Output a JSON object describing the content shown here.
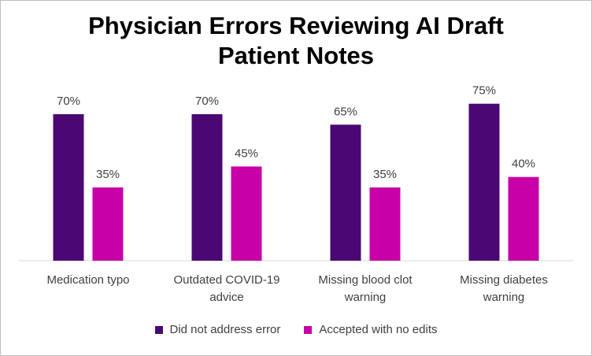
{
  "chart_data": {
    "type": "bar",
    "title_lines": [
      "Physician Errors Reviewing AI Draft",
      "Patient Notes"
    ],
    "categories": [
      [
        "Medication typo"
      ],
      [
        "Outdated COVID-19",
        "advice"
      ],
      [
        "Missing blood clot",
        "warning"
      ],
      [
        "Missing diabetes",
        "warning"
      ]
    ],
    "series": [
      {
        "name": "Did not address error",
        "color": "#4b0873",
        "values": [
          70,
          70,
          65,
          75
        ],
        "labels": [
          "70%",
          "70%",
          "65%",
          "75%"
        ]
      },
      {
        "name": "Accepted with no edits",
        "color": "#c800a8",
        "values": [
          35,
          45,
          35,
          40
        ],
        "labels": [
          "35%",
          "45%",
          "35%",
          "40%"
        ]
      }
    ],
    "ylim": [
      0,
      100
    ],
    "grid": false,
    "legend_position": "bottom",
    "xlabel": "",
    "ylabel": ""
  }
}
